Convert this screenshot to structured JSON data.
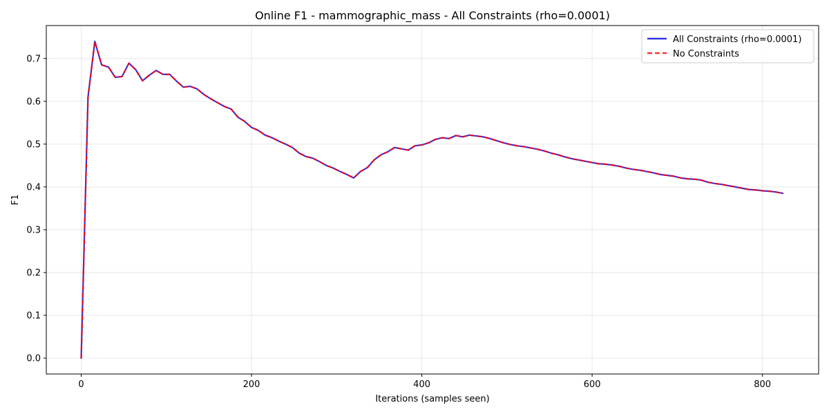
{
  "chart_data": {
    "type": "line",
    "title": "Online F1 - mammographic_mass - All Constraints (rho=0.0001)",
    "xlabel": "Iterations (samples seen)",
    "ylabel": "F1",
    "xlim": [
      -41,
      866
    ],
    "ylim": [
      -0.037,
      0.777
    ],
    "xticks": [
      0,
      200,
      400,
      600,
      800
    ],
    "xtick_labels": [
      "0",
      "200",
      "400",
      "600",
      "800"
    ],
    "yticks": [
      0.0,
      0.1,
      0.2,
      0.3,
      0.4,
      0.5,
      0.6,
      0.7
    ],
    "ytick_labels": [
      "0.0",
      "0.1",
      "0.2",
      "0.3",
      "0.4",
      "0.5",
      "0.6",
      "0.7"
    ],
    "grid": true,
    "legend_position": "top-right",
    "x": [
      0,
      8,
      16,
      24,
      32,
      40,
      48,
      56,
      64,
      72,
      80,
      88,
      96,
      104,
      112,
      120,
      128,
      136,
      144,
      152,
      160,
      168,
      176,
      184,
      192,
      200,
      208,
      216,
      224,
      232,
      240,
      248,
      256,
      264,
      272,
      280,
      288,
      296,
      304,
      312,
      320,
      328,
      336,
      344,
      352,
      360,
      368,
      376,
      384,
      392,
      400,
      408,
      416,
      424,
      432,
      440,
      448,
      456,
      464,
      472,
      480,
      488,
      496,
      504,
      512,
      520,
      528,
      536,
      544,
      552,
      560,
      568,
      576,
      584,
      592,
      600,
      608,
      616,
      624,
      632,
      640,
      648,
      656,
      664,
      672,
      680,
      688,
      696,
      704,
      712,
      720,
      728,
      736,
      744,
      752,
      760,
      768,
      776,
      784,
      792,
      800,
      808,
      816,
      824
    ],
    "series": [
      {
        "name": "All Constraints (rho=0.0001)",
        "color": "#0000dd",
        "style": "solid",
        "values": [
          0.0,
          0.61,
          0.74,
          0.685,
          0.68,
          0.656,
          0.658,
          0.689,
          0.674,
          0.648,
          0.661,
          0.672,
          0.663,
          0.663,
          0.647,
          0.633,
          0.635,
          0.629,
          0.616,
          0.606,
          0.597,
          0.588,
          0.582,
          0.563,
          0.553,
          0.539,
          0.532,
          0.521,
          0.515,
          0.507,
          0.5,
          0.492,
          0.479,
          0.471,
          0.467,
          0.459,
          0.45,
          0.444,
          0.436,
          0.429,
          0.421,
          0.436,
          0.445,
          0.463,
          0.475,
          0.482,
          0.492,
          0.489,
          0.486,
          0.496,
          0.498,
          0.503,
          0.511,
          0.515,
          0.513,
          0.52,
          0.517,
          0.521,
          0.519,
          0.517,
          0.513,
          0.508,
          0.503,
          0.499,
          0.496,
          0.494,
          0.491,
          0.488,
          0.484,
          0.479,
          0.475,
          0.47,
          0.466,
          0.463,
          0.46,
          0.457,
          0.454,
          0.453,
          0.451,
          0.448,
          0.444,
          0.441,
          0.439,
          0.436,
          0.433,
          0.429,
          0.427,
          0.425,
          0.421,
          0.419,
          0.418,
          0.416,
          0.411,
          0.408,
          0.406,
          0.403,
          0.4,
          0.397,
          0.394,
          0.393,
          0.391,
          0.39,
          0.388,
          0.385
        ]
      },
      {
        "name": "No Constraints",
        "color": "#ff0000",
        "style": "dashed",
        "values": [
          0.0,
          0.61,
          0.74,
          0.685,
          0.68,
          0.656,
          0.658,
          0.689,
          0.674,
          0.648,
          0.661,
          0.672,
          0.663,
          0.663,
          0.647,
          0.633,
          0.635,
          0.629,
          0.616,
          0.606,
          0.597,
          0.588,
          0.582,
          0.563,
          0.553,
          0.539,
          0.532,
          0.521,
          0.515,
          0.507,
          0.5,
          0.492,
          0.479,
          0.471,
          0.467,
          0.459,
          0.45,
          0.444,
          0.436,
          0.429,
          0.421,
          0.436,
          0.445,
          0.463,
          0.475,
          0.482,
          0.492,
          0.489,
          0.486,
          0.496,
          0.498,
          0.503,
          0.511,
          0.515,
          0.513,
          0.52,
          0.517,
          0.521,
          0.519,
          0.517,
          0.513,
          0.508,
          0.503,
          0.499,
          0.496,
          0.494,
          0.491,
          0.488,
          0.484,
          0.479,
          0.475,
          0.47,
          0.466,
          0.463,
          0.46,
          0.457,
          0.454,
          0.453,
          0.451,
          0.448,
          0.444,
          0.441,
          0.439,
          0.436,
          0.433,
          0.429,
          0.427,
          0.425,
          0.421,
          0.419,
          0.418,
          0.416,
          0.411,
          0.408,
          0.406,
          0.403,
          0.4,
          0.397,
          0.394,
          0.393,
          0.391,
          0.39,
          0.388,
          0.385
        ]
      }
    ]
  }
}
